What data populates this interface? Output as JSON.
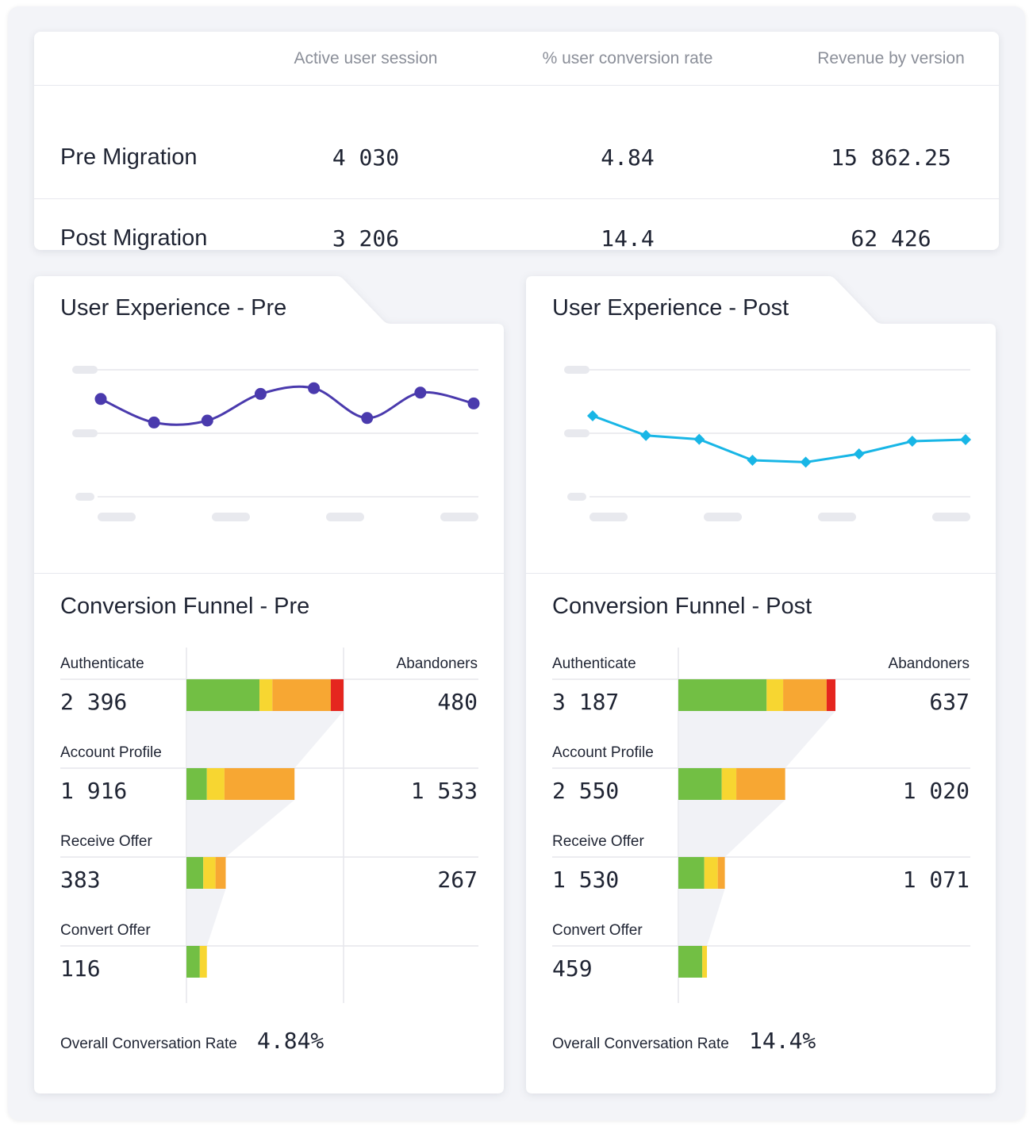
{
  "summary": {
    "columns": [
      "Active user session",
      "% user conversion rate",
      "Revenue by version"
    ],
    "rows": [
      {
        "label": "Pre Migration",
        "values": [
          "4 030",
          "4.84",
          "15 862.25"
        ]
      },
      {
        "label": "Post Migration",
        "values": [
          "3 206",
          "14.4",
          "62 426"
        ]
      }
    ]
  },
  "pre": {
    "ux_title": "User Experience - Pre",
    "funnel_title": "Conversion Funnel - Pre",
    "abandoners_label": "Abandoners",
    "stages": [
      {
        "name": "Authenticate",
        "value": "2 396",
        "abandoners": "480"
      },
      {
        "name": "Account Profile",
        "value": "1 916",
        "abandoners": "1 533"
      },
      {
        "name": "Receive Offer",
        "value": "383",
        "abandoners": "267"
      },
      {
        "name": "Convert Offer",
        "value": "116"
      }
    ],
    "overall_label": "Overall Conversation Rate",
    "overall_value": "4.84%"
  },
  "post": {
    "ux_title": "User Experience - Post",
    "funnel_title": "Conversion Funnel - Post",
    "abandoners_label": "Abandoners",
    "stages": [
      {
        "name": "Authenticate",
        "value": "3 187",
        "abandoners": "637"
      },
      {
        "name": "Account Profile",
        "value": "2 550",
        "abandoners": "1 020"
      },
      {
        "name": "Receive Offer",
        "value": "1 530",
        "abandoners": "1 071"
      },
      {
        "name": "Convert Offer",
        "value": "459"
      }
    ],
    "overall_label": "Overall Conversation Rate",
    "overall_value": "14.4%"
  },
  "colors": {
    "pre_line": "#4a3aad",
    "post_line": "#18b6e6",
    "seg_green": "#72bf44",
    "seg_yellow": "#f7d631",
    "seg_orange": "#f7a733",
    "seg_red": "#e5261f"
  },
  "chart_data": [
    {
      "type": "line",
      "series": [
        {
          "values": [
            0.54,
            0.17,
            0.2,
            0.62,
            0.71,
            0.24,
            0.64,
            0.47
          ]
        }
      ],
      "ylim": [
        -1,
        1
      ],
      "smooth": true,
      "marker": "circle",
      "grid": true
    },
    {
      "type": "line",
      "series": [
        {
          "values": [
            0.65,
            0.03,
            -0.09,
            -0.75,
            -0.81,
            -0.55,
            -0.15,
            -0.1
          ]
        }
      ],
      "ylim": [
        -1.9,
        2.1
      ],
      "smooth": false,
      "marker": "diamond",
      "grid": true
    }
  ],
  "funnel_segments": {
    "pre": [
      [
        0.465,
        0.082,
        0.372,
        0.081
      ],
      [
        0.13,
        0.112,
        0.446
      ],
      [
        0.107,
        0.078,
        0.065
      ],
      [
        0.085,
        0.045
      ]
    ],
    "post": [
      [
        0.562,
        0.105,
        0.277,
        0.056
      ],
      [
        0.276,
        0.093,
        0.311
      ],
      [
        0.165,
        0.086,
        0.045
      ],
      [
        0.152,
        0.03
      ]
    ]
  }
}
